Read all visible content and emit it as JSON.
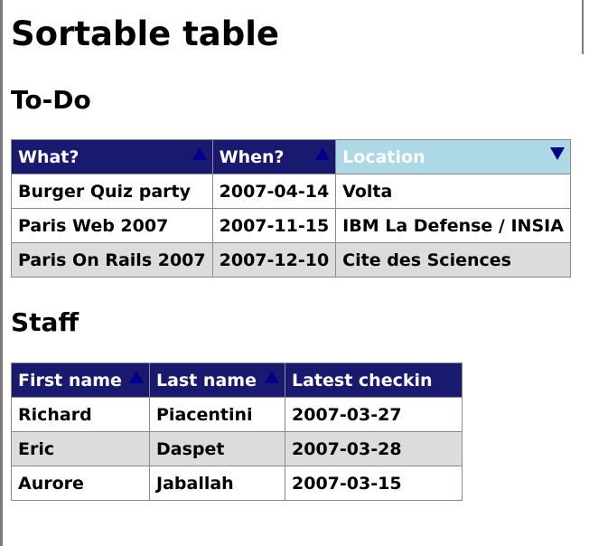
{
  "page": {
    "title": "Sortable table"
  },
  "todo": {
    "heading": "To-Do",
    "columns": [
      {
        "label": "What?",
        "sort": "asc",
        "active": false
      },
      {
        "label": "When?",
        "sort": "asc",
        "active": false
      },
      {
        "label": "Location",
        "sort": "desc",
        "active": true
      }
    ],
    "rows": [
      [
        "Burger Quiz party",
        "2007-04-14",
        "Volta"
      ],
      [
        "Paris Web 2007",
        "2007-11-15",
        "IBM La Defense / INSIA"
      ],
      [
        "Paris On Rails 2007",
        "2007-12-10",
        "Cite des Sciences"
      ]
    ]
  },
  "staff": {
    "heading": "Staff",
    "columns": [
      {
        "label": "First name",
        "sort": "asc",
        "active": false
      },
      {
        "label": "Last name",
        "sort": "asc",
        "active": false
      },
      {
        "label": "Latest checkin",
        "sort": "none",
        "active": false
      }
    ],
    "rows": [
      [
        "Richard",
        "Piacentini",
        "2007-03-27"
      ],
      [
        "Eric",
        "Daspet",
        "2007-03-28"
      ],
      [
        "Aurore",
        "Jaballah",
        "2007-03-15"
      ]
    ]
  },
  "colors": {
    "header_bg": "#191970",
    "header_active_bg": "#add8e6",
    "arrow": "#00008b",
    "row_alt_bg": "#dcdcdc",
    "border": "#8a8a8a"
  },
  "icons": {
    "sort_asc": "sort-ascending-icon",
    "sort_desc": "sort-descending-icon"
  }
}
